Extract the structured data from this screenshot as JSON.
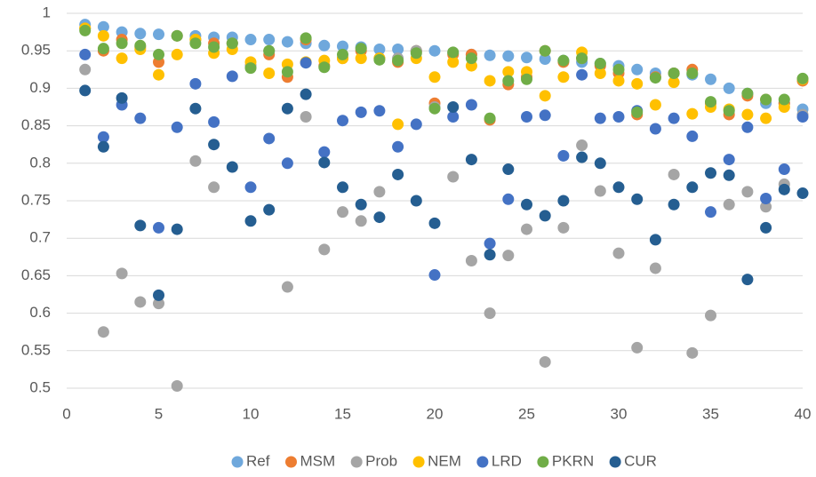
{
  "chart_data": {
    "type": "scatter",
    "x": [
      1,
      2,
      3,
      4,
      5,
      6,
      7,
      8,
      9,
      10,
      11,
      12,
      13,
      14,
      15,
      16,
      17,
      18,
      19,
      20,
      21,
      22,
      23,
      24,
      25,
      26,
      27,
      28,
      29,
      30,
      31,
      32,
      33,
      34,
      35,
      36,
      37,
      38,
      39,
      40
    ],
    "xlim": [
      0,
      40
    ],
    "xticks": [
      0,
      5,
      10,
      15,
      20,
      25,
      30,
      35,
      40
    ],
    "ylim": [
      0.5,
      1
    ],
    "yticks": [
      0.5,
      0.55,
      0.6,
      0.65,
      0.7,
      0.75,
      0.8,
      0.85,
      0.9,
      0.95,
      1
    ],
    "grid": true,
    "legend": "bottom",
    "series": [
      {
        "name": "Ref",
        "color": "#6fa8dc",
        "values": [
          0.985,
          0.982,
          0.975,
          0.973,
          0.972,
          0.97,
          0.97,
          0.968,
          0.968,
          0.965,
          0.965,
          0.962,
          0.96,
          0.957,
          0.956,
          0.955,
          0.952,
          0.952,
          0.95,
          0.95,
          0.947,
          0.945,
          0.944,
          0.943,
          0.941,
          0.939,
          0.937,
          0.935,
          0.933,
          0.93,
          0.925,
          0.92,
          0.92,
          0.918,
          0.912,
          0.9,
          0.893,
          0.88,
          0.88,
          0.872
        ]
      },
      {
        "name": "MSM",
        "color": "#ed7d31",
        "values": [
          0.98,
          0.95,
          0.965,
          0.955,
          0.935,
          0.97,
          0.965,
          0.96,
          0.96,
          0.93,
          0.945,
          0.915,
          0.965,
          0.93,
          0.94,
          0.95,
          0.94,
          0.935,
          0.95,
          0.88,
          0.945,
          0.945,
          0.858,
          0.905,
          0.915,
          0.95,
          0.935,
          0.94,
          0.93,
          0.92,
          0.865,
          0.915,
          0.92,
          0.925,
          0.88,
          0.865,
          0.89,
          0.885,
          0.88,
          0.91
        ]
      },
      {
        "name": "Prob",
        "color": "#a5a5a5",
        "values": [
          0.925,
          0.575,
          0.653,
          0.615,
          0.613,
          0.503,
          0.803,
          0.768,
          0.96,
          0.93,
          0.95,
          0.635,
          0.862,
          0.685,
          0.735,
          0.723,
          0.762,
          0.94,
          0.95,
          0.875,
          0.782,
          0.67,
          0.6,
          0.677,
          0.712,
          0.535,
          0.714,
          0.824,
          0.763,
          0.68,
          0.554,
          0.66,
          0.785,
          0.547,
          0.597,
          0.745,
          0.762,
          0.742,
          0.772,
          0.865
        ]
      },
      {
        "name": "NEM",
        "color": "#ffc000",
        "values": [
          0.98,
          0.97,
          0.94,
          0.952,
          0.918,
          0.945,
          0.965,
          0.947,
          0.952,
          0.935,
          0.92,
          0.932,
          0.935,
          0.937,
          0.94,
          0.94,
          0.94,
          0.852,
          0.94,
          0.915,
          0.935,
          0.93,
          0.91,
          0.922,
          0.922,
          0.89,
          0.915,
          0.948,
          0.92,
          0.91,
          0.906,
          0.878,
          0.908,
          0.866,
          0.875,
          0.872,
          0.865,
          0.86,
          0.875,
          0.912
        ]
      },
      {
        "name": "LRD",
        "color": "#4472c4",
        "values": [
          0.945,
          0.835,
          0.878,
          0.86,
          0.714,
          0.848,
          0.906,
          0.855,
          0.916,
          0.768,
          0.833,
          0.8,
          0.934,
          0.815,
          0.857,
          0.868,
          0.87,
          0.822,
          0.852,
          0.651,
          0.862,
          0.878,
          0.693,
          0.752,
          0.862,
          0.864,
          0.81,
          0.918,
          0.86,
          0.862,
          0.87,
          0.846,
          0.86,
          0.836,
          0.735,
          0.805,
          0.848,
          0.753,
          0.792,
          0.862
        ]
      },
      {
        "name": "PKRN",
        "color": "#70ad47",
        "values": [
          0.977,
          0.953,
          0.96,
          0.957,
          0.945,
          0.97,
          0.96,
          0.955,
          0.96,
          0.927,
          0.95,
          0.922,
          0.967,
          0.928,
          0.945,
          0.953,
          0.938,
          0.937,
          0.947,
          0.873,
          0.948,
          0.94,
          0.86,
          0.91,
          0.912,
          0.95,
          0.937,
          0.94,
          0.933,
          0.925,
          0.868,
          0.914,
          0.92,
          0.92,
          0.882,
          0.87,
          0.893,
          0.885,
          0.885,
          0.913
        ]
      },
      {
        "name": "CUR",
        "color": "#255e91",
        "values": [
          0.897,
          0.822,
          0.887,
          0.717,
          0.624,
          0.712,
          0.873,
          0.825,
          0.795,
          0.723,
          0.738,
          0.873,
          0.892,
          0.801,
          0.768,
          0.745,
          0.728,
          0.785,
          0.75,
          0.72,
          0.875,
          0.805,
          0.678,
          0.792,
          0.745,
          0.73,
          0.75,
          0.808,
          0.8,
          0.768,
          0.752,
          0.698,
          0.745,
          0.768,
          0.787,
          0.784,
          0.645,
          0.714,
          0.765,
          0.76
        ]
      }
    ]
  }
}
